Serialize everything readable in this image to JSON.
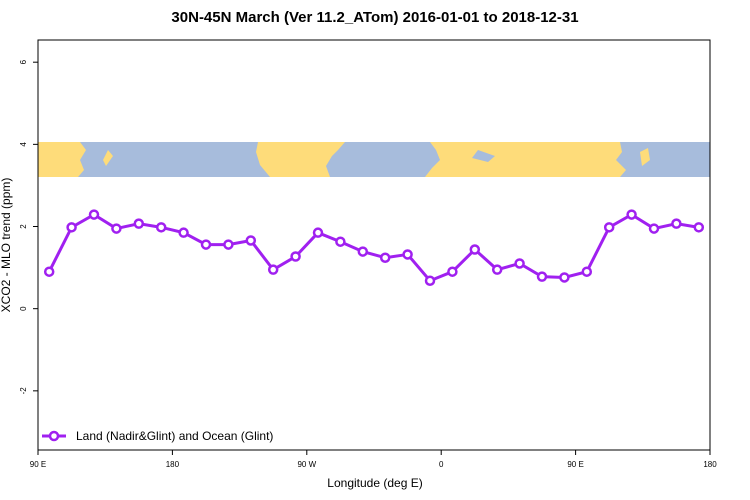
{
  "chart_data": {
    "type": "line",
    "title": "30N-45N March (Ver 11.2_ATom)   2016-01-01 to 2018-12-31",
    "x_label": "Longitude (deg E)",
    "y_label": "XCO2 - MLO trend (ppm)",
    "x": [
      97.5,
      112.5,
      127.5,
      142.5,
      157.5,
      172.5,
      187.5,
      202.5,
      217.5,
      232.5,
      247.5,
      262.5,
      277.5,
      292.5,
      307.5,
      322.5,
      337.5,
      352.5,
      367.5,
      382.5,
      397.5,
      412.5,
      427.5,
      442.5,
      457.5,
      472.5,
      487.5,
      502.5,
      517.5,
      532.5
    ],
    "series": [
      {
        "name": "Land (Nadir&Glint) and Ocean (Glint)",
        "color": "#a020f0",
        "values": [
          0.9,
          1.98,
          2.29,
          1.95,
          2.07,
          1.98,
          1.85,
          1.56,
          1.56,
          1.66,
          0.95,
          1.27,
          1.85,
          1.63,
          1.39,
          1.24,
          1.32,
          0.68,
          0.9,
          1.44,
          0.95,
          1.1,
          0.78,
          0.76,
          0.9,
          1.98,
          2.29,
          1.95,
          2.07,
          1.98
        ]
      }
    ],
    "xlim": [
      90,
      540
    ],
    "xticks": [
      {
        "value": 90,
        "label": "90 E"
      },
      {
        "value": 180,
        "label": "180"
      },
      {
        "value": 270,
        "label": "90 W"
      },
      {
        "value": 360,
        "label": "0"
      },
      {
        "value": 450,
        "label": "90 E"
      },
      {
        "value": 540,
        "label": "180"
      }
    ],
    "ylim": [
      -3.44,
      6.54
    ],
    "yticks": [
      -2,
      0,
      2,
      4,
      6
    ],
    "legend": "bottom-left"
  }
}
